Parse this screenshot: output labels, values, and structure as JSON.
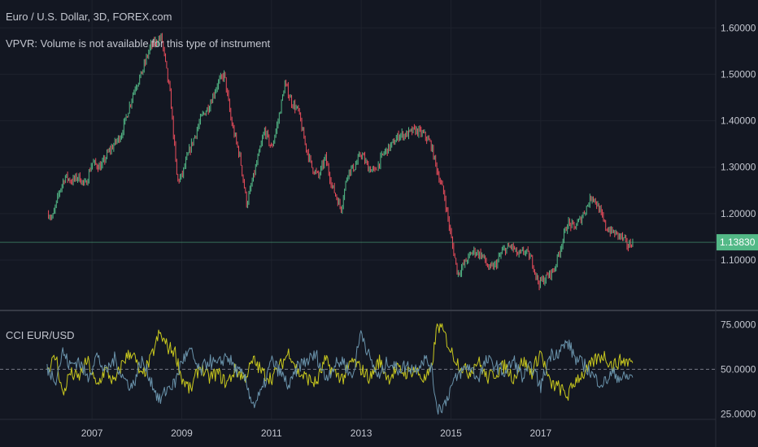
{
  "header": {
    "title": "Euro / U.S. Dollar, 3D, FOREX.com",
    "subtitle": "VPVR: Volume is not available for this type of instrument"
  },
  "colors": {
    "background": "#131722",
    "up": "#53b987",
    "down": "#eb4d5c",
    "badge": "#53b987",
    "cci_a": "#c8c81e",
    "cci_b": "#6a93ab",
    "grid": "#1e222d",
    "axis_text": "#c3c6cf"
  },
  "chart_data": [
    {
      "type": "candlestick",
      "title": "Euro / U.S. Dollar, 3D, FOREX.com",
      "x_ticks": [
        "2007",
        "2009",
        "2011",
        "2013",
        "2015",
        "2017"
      ],
      "x_tick_values": [
        2007,
        2009,
        2011,
        2013,
        2015,
        2017
      ],
      "xlim": [
        2004.95,
        2020.9
      ],
      "y_ticks": [
        "1.10000",
        "1.20000",
        "1.30000",
        "1.40000",
        "1.50000",
        "1.60000"
      ],
      "ylim": [
        0.995,
        1.66
      ],
      "last_price": 1.1383,
      "last_price_label": "1.13830",
      "anchors": [
        [
          2006.03,
          1.2
        ],
        [
          2006.12,
          1.19
        ],
        [
          2006.28,
          1.25
        ],
        [
          2006.4,
          1.28
        ],
        [
          2006.55,
          1.27
        ],
        [
          2006.7,
          1.28
        ],
        [
          2006.85,
          1.26
        ],
        [
          2007.0,
          1.31
        ],
        [
          2007.2,
          1.3
        ],
        [
          2007.35,
          1.33
        ],
        [
          2007.5,
          1.35
        ],
        [
          2007.65,
          1.37
        ],
        [
          2007.8,
          1.42
        ],
        [
          2007.95,
          1.47
        ],
        [
          2008.1,
          1.5
        ],
        [
          2008.3,
          1.56
        ],
        [
          2008.55,
          1.58
        ],
        [
          2008.75,
          1.45
        ],
        [
          2008.9,
          1.27
        ],
        [
          2009.0,
          1.28
        ],
        [
          2009.15,
          1.33
        ],
        [
          2009.3,
          1.37
        ],
        [
          2009.45,
          1.41
        ],
        [
          2009.6,
          1.43
        ],
        [
          2009.8,
          1.48
        ],
        [
          2009.95,
          1.5
        ],
        [
          2010.1,
          1.4
        ],
        [
          2010.3,
          1.32
        ],
        [
          2010.45,
          1.22
        ],
        [
          2010.6,
          1.28
        ],
        [
          2010.85,
          1.38
        ],
        [
          2011.0,
          1.34
        ],
        [
          2011.15,
          1.4
        ],
        [
          2011.3,
          1.48
        ],
        [
          2011.45,
          1.44
        ],
        [
          2011.6,
          1.42
        ],
        [
          2011.75,
          1.35
        ],
        [
          2011.9,
          1.3
        ],
        [
          2012.05,
          1.28
        ],
        [
          2012.2,
          1.32
        ],
        [
          2012.35,
          1.26
        ],
        [
          2012.55,
          1.21
        ],
        [
          2012.7,
          1.29
        ],
        [
          2012.85,
          1.3
        ],
        [
          2013.0,
          1.33
        ],
        [
          2013.15,
          1.3
        ],
        [
          2013.3,
          1.29
        ],
        [
          2013.5,
          1.33
        ],
        [
          2013.7,
          1.35
        ],
        [
          2013.85,
          1.37
        ],
        [
          2014.0,
          1.37
        ],
        [
          2014.2,
          1.38
        ],
        [
          2014.4,
          1.37
        ],
        [
          2014.55,
          1.35
        ],
        [
          2014.7,
          1.29
        ],
        [
          2014.85,
          1.24
        ],
        [
          2015.0,
          1.15
        ],
        [
          2015.15,
          1.07
        ],
        [
          2015.35,
          1.1
        ],
        [
          2015.5,
          1.12
        ],
        [
          2015.7,
          1.11
        ],
        [
          2015.85,
          1.08
        ],
        [
          2016.0,
          1.09
        ],
        [
          2016.15,
          1.12
        ],
        [
          2016.35,
          1.13
        ],
        [
          2016.5,
          1.11
        ],
        [
          2016.65,
          1.12
        ],
        [
          2016.8,
          1.1
        ],
        [
          2016.95,
          1.05
        ],
        [
          2017.1,
          1.06
        ],
        [
          2017.3,
          1.08
        ],
        [
          2017.45,
          1.13
        ],
        [
          2017.6,
          1.18
        ],
        [
          2017.75,
          1.17
        ],
        [
          2017.9,
          1.19
        ],
        [
          2018.05,
          1.22
        ],
        [
          2018.15,
          1.24
        ],
        [
          2018.3,
          1.21
        ],
        [
          2018.45,
          1.17
        ],
        [
          2018.6,
          1.16
        ],
        [
          2018.8,
          1.15
        ],
        [
          2018.95,
          1.13
        ],
        [
          2019.05,
          1.14
        ]
      ]
    },
    {
      "type": "line",
      "title": "CCI EUR/USD",
      "y_ticks": [
        "25.0000",
        "50.0000",
        "75.0000"
      ],
      "ylim": [
        22,
        82
      ],
      "reference_line": 50,
      "xlim": [
        2004.95,
        2020.9
      ],
      "series": [
        {
          "color": "#c8c81e",
          "anchors": [
            [
              2006.0,
              50
            ],
            [
              2006.2,
              57
            ],
            [
              2006.35,
              35
            ],
            [
              2006.5,
              48
            ],
            [
              2006.7,
              45
            ],
            [
              2006.9,
              55
            ],
            [
              2007.1,
              40
            ],
            [
              2007.3,
              50
            ],
            [
              2007.5,
              42
            ],
            [
              2007.7,
              55
            ],
            [
              2007.9,
              60
            ],
            [
              2008.1,
              45
            ],
            [
              2008.3,
              55
            ],
            [
              2008.5,
              70
            ],
            [
              2008.7,
              62
            ],
            [
              2008.85,
              60
            ],
            [
              2009.0,
              45
            ],
            [
              2009.2,
              38
            ],
            [
              2009.4,
              52
            ],
            [
              2009.6,
              45
            ],
            [
              2009.8,
              48
            ],
            [
              2010.0,
              42
            ],
            [
              2010.2,
              50
            ],
            [
              2010.4,
              45
            ],
            [
              2010.6,
              55
            ],
            [
              2010.8,
              48
            ],
            [
              2011.0,
              45
            ],
            [
              2011.2,
              52
            ],
            [
              2011.4,
              60
            ],
            [
              2011.6,
              48
            ],
            [
              2011.8,
              45
            ],
            [
              2012.0,
              42
            ],
            [
              2012.2,
              55
            ],
            [
              2012.4,
              48
            ],
            [
              2012.6,
              45
            ],
            [
              2012.8,
              55
            ],
            [
              2013.0,
              50
            ],
            [
              2013.2,
              45
            ],
            [
              2013.4,
              55
            ],
            [
              2013.6,
              45
            ],
            [
              2013.8,
              50
            ],
            [
              2014.0,
              48
            ],
            [
              2014.2,
              50
            ],
            [
              2014.4,
              44
            ],
            [
              2014.55,
              48
            ],
            [
              2014.7,
              75
            ],
            [
              2014.85,
              70
            ],
            [
              2015.0,
              60
            ],
            [
              2015.2,
              52
            ],
            [
              2015.4,
              48
            ],
            [
              2015.6,
              55
            ],
            [
              2015.8,
              45
            ],
            [
              2016.0,
              48
            ],
            [
              2016.2,
              52
            ],
            [
              2016.4,
              45
            ],
            [
              2016.6,
              55
            ],
            [
              2016.8,
              48
            ],
            [
              2017.0,
              60
            ],
            [
              2017.2,
              42
            ],
            [
              2017.4,
              40
            ],
            [
              2017.6,
              35
            ],
            [
              2017.8,
              45
            ],
            [
              2018.0,
              48
            ],
            [
              2018.2,
              55
            ],
            [
              2018.4,
              58
            ],
            [
              2018.6,
              52
            ],
            [
              2018.8,
              55
            ],
            [
              2019.05,
              54
            ]
          ]
        },
        {
          "color": "#6a93ab",
          "anchors": [
            [
              2006.0,
              50
            ],
            [
              2006.2,
              45
            ],
            [
              2006.35,
              60
            ],
            [
              2006.5,
              52
            ],
            [
              2006.7,
              55
            ],
            [
              2006.9,
              45
            ],
            [
              2007.1,
              58
            ],
            [
              2007.3,
              48
            ],
            [
              2007.5,
              56
            ],
            [
              2007.7,
              45
            ],
            [
              2007.9,
              40
            ],
            [
              2008.1,
              55
            ],
            [
              2008.3,
              45
            ],
            [
              2008.5,
              32
            ],
            [
              2008.7,
              40
            ],
            [
              2008.85,
              42
            ],
            [
              2009.0,
              55
            ],
            [
              2009.2,
              60
            ],
            [
              2009.4,
              48
            ],
            [
              2009.6,
              55
            ],
            [
              2009.8,
              52
            ],
            [
              2010.0,
              58
            ],
            [
              2010.2,
              50
            ],
            [
              2010.4,
              45
            ],
            [
              2010.6,
              30
            ],
            [
              2010.8,
              38
            ],
            [
              2011.0,
              55
            ],
            [
              2011.2,
              48
            ],
            [
              2011.4,
              40
            ],
            [
              2011.6,
              52
            ],
            [
              2011.8,
              55
            ],
            [
              2012.0,
              58
            ],
            [
              2012.2,
              45
            ],
            [
              2012.4,
              52
            ],
            [
              2012.6,
              55
            ],
            [
              2012.8,
              45
            ],
            [
              2013.0,
              72
            ],
            [
              2013.2,
              55
            ],
            [
              2013.4,
              45
            ],
            [
              2013.6,
              55
            ],
            [
              2013.8,
              50
            ],
            [
              2014.0,
              52
            ],
            [
              2014.2,
              50
            ],
            [
              2014.4,
              56
            ],
            [
              2014.55,
              52
            ],
            [
              2014.7,
              28
            ],
            [
              2014.85,
              30
            ],
            [
              2015.0,
              40
            ],
            [
              2015.2,
              48
            ],
            [
              2015.4,
              52
            ],
            [
              2015.6,
              45
            ],
            [
              2015.8,
              55
            ],
            [
              2016.0,
              52
            ],
            [
              2016.2,
              48
            ],
            [
              2016.4,
              55
            ],
            [
              2016.6,
              45
            ],
            [
              2016.8,
              52
            ],
            [
              2017.0,
              40
            ],
            [
              2017.2,
              58
            ],
            [
              2017.4,
              60
            ],
            [
              2017.6,
              65
            ],
            [
              2017.8,
              55
            ],
            [
              2018.0,
              52
            ],
            [
              2018.2,
              45
            ],
            [
              2018.4,
              42
            ],
            [
              2018.6,
              48
            ],
            [
              2018.8,
              45
            ],
            [
              2019.05,
              46
            ]
          ]
        }
      ]
    }
  ]
}
